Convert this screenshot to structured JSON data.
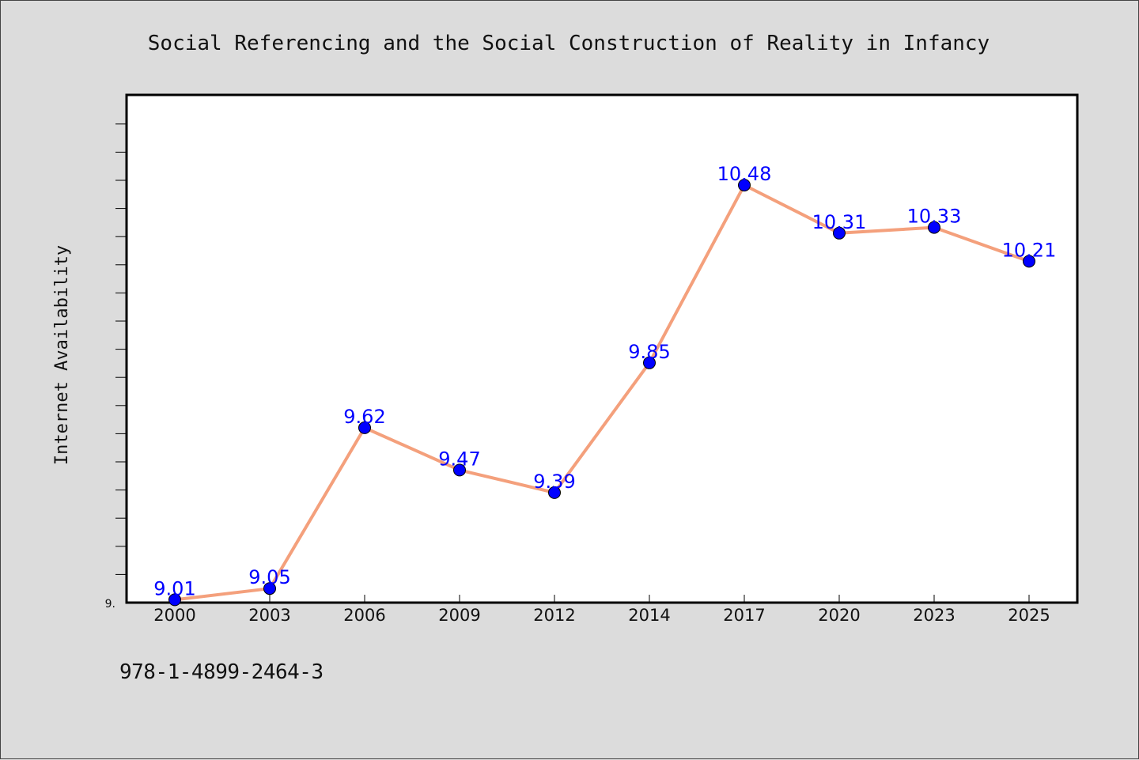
{
  "chart_data": {
    "type": "line",
    "title": "Social Referencing and the Social Construction of Reality in Infancy",
    "xlabel": "",
    "ylabel": "Internet Availability",
    "categories": [
      "2000",
      "2003",
      "2006",
      "2009",
      "2012",
      "2014",
      "2017",
      "2020",
      "2023",
      "2025"
    ],
    "series": [
      {
        "values": [
          9.01,
          9.05,
          9.62,
          9.47,
          9.39,
          9.85,
          10.48,
          10.31,
          10.33,
          10.21
        ]
      }
    ],
    "data_labels": [
      "9.01",
      "9.05",
      "9.62",
      "9.47",
      "9.39",
      "9.85",
      "10.48",
      "10.31",
      "10.33",
      "10.21"
    ],
    "ylim": [
      9.0,
      10.8
    ],
    "y_tick_labels": [
      "9."
    ],
    "grid": false,
    "colors": {
      "line": "#f4a07c",
      "marker": "#0000ff",
      "data_label": "#0000ff",
      "background": "#dcdcdc",
      "plot_area": "#ffffff"
    }
  },
  "footer": {
    "code": "978-1-4899-2464-3"
  }
}
